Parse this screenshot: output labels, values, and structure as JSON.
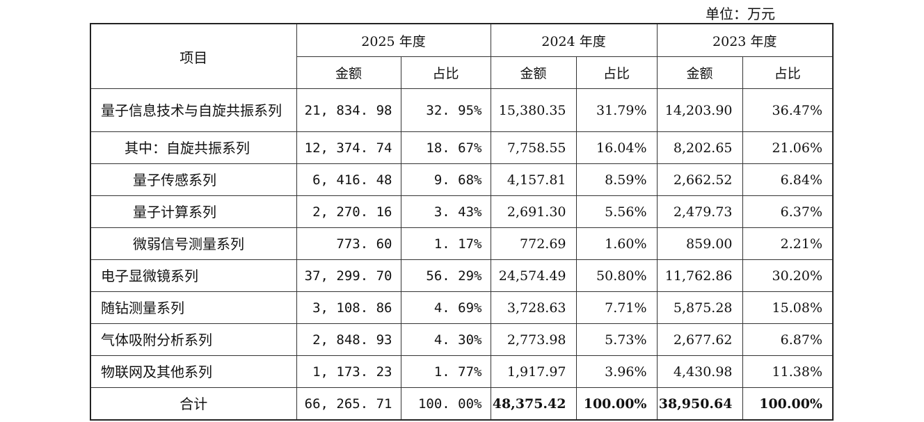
{
  "unit_label": "单位：万元",
  "header": {
    "item": "项目",
    "years": [
      "2025 年度",
      "2024 年度",
      "2023 年度"
    ],
    "amount": "金额",
    "ratio": "占比"
  },
  "rows": [
    {
      "label": "量子信息技术与自旋共振系列",
      "v": [
        "21, 834. 98",
        "32. 95%",
        "15,380.35",
        "31.79%",
        "14,203.90",
        "36.47%"
      ]
    },
    {
      "label": "其中：自旋共振系列",
      "v": [
        "12, 374. 74",
        "18. 67%",
        "7,758.55",
        "16.04%",
        "8,202.65",
        "21.06%"
      ]
    },
    {
      "label": "量子传感系列",
      "v": [
        "6, 416. 48",
        "9. 68%",
        "4,157.81",
        "8.59%",
        "2,662.52",
        "6.84%"
      ]
    },
    {
      "label": "量子计算系列",
      "v": [
        "2, 270. 16",
        "3. 43%",
        "2,691.30",
        "5.56%",
        "2,479.73",
        "6.37%"
      ]
    },
    {
      "label": "微弱信号测量系列",
      "v": [
        "773. 60",
        "1. 17%",
        "772.69",
        "1.60%",
        "859.00",
        "2.21%"
      ]
    },
    {
      "label": "电子显微镜系列",
      "v": [
        "37, 299. 70",
        "56. 29%",
        "24,574.49",
        "50.80%",
        "11,762.86",
        "30.20%"
      ]
    },
    {
      "label": "随钻测量系列",
      "v": [
        "3, 108. 86",
        "4. 69%",
        "3,728.63",
        "7.71%",
        "5,875.28",
        "15.08%"
      ]
    },
    {
      "label": "气体吸附分析系列",
      "v": [
        "2, 848. 93",
        "4. 30%",
        "2,773.98",
        "5.73%",
        "2,677.62",
        "6.87%"
      ]
    },
    {
      "label": "物联网及其他系列",
      "v": [
        "1, 173. 23",
        "1. 77%",
        "1,917.97",
        "3.96%",
        "4,430.98",
        "11.38%"
      ]
    },
    {
      "label": "合计",
      "v": [
        "66, 265. 71",
        "100. 00%",
        "48,375.42",
        "100.00%",
        "38,950.64",
        "100.00%"
      ]
    }
  ]
}
